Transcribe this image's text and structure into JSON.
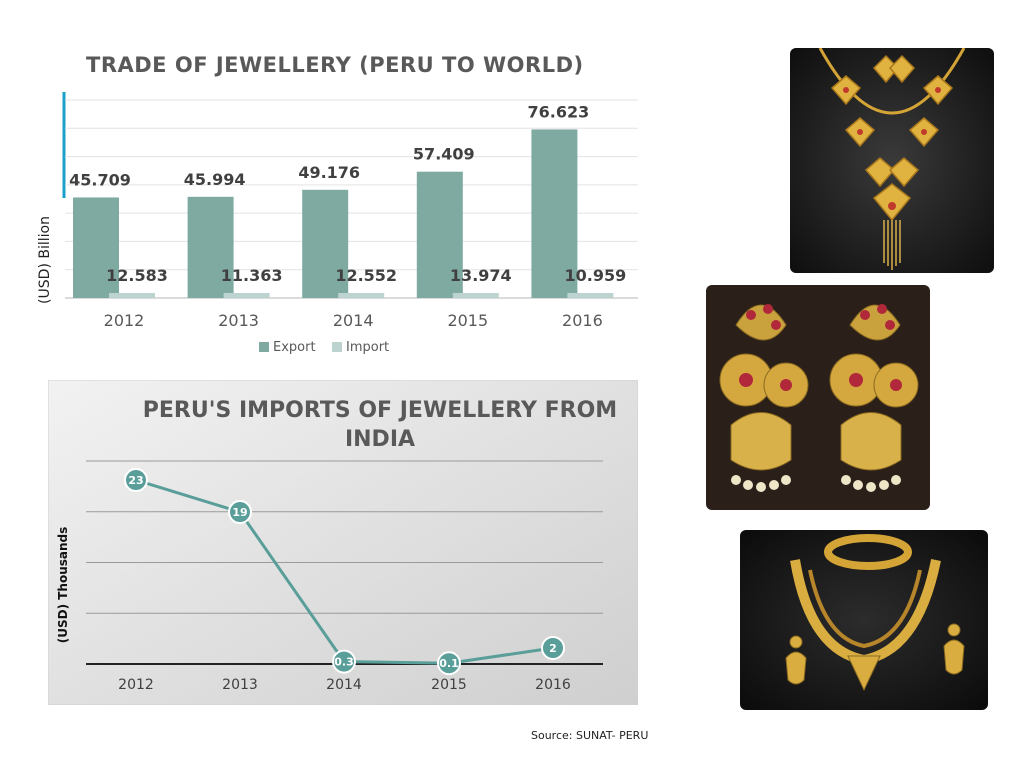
{
  "chart_data": [
    {
      "type": "bar",
      "title": "TRADE OF JEWELLERY (PERU TO WORLD)",
      "ylabel": "(USD) Billion",
      "categories": [
        "2012",
        "2013",
        "2014",
        "2015",
        "2016"
      ],
      "series": [
        {
          "name": "Export",
          "values": [
            45.709,
            45.994,
            49.176,
            57.409,
            76.623
          ],
          "labels": [
            "45.709",
            "45.994",
            "49.176",
            "57.409",
            "76.623"
          ],
          "color": "#7faaa2"
        },
        {
          "name": "Import",
          "values": [
            12.583,
            11.363,
            12.552,
            13.974,
            10.959
          ],
          "labels": [
            "12.583",
            "11.363",
            "12.552",
            "13.974",
            "10.959"
          ],
          "color": "#bcd3cf"
        }
      ],
      "legend": "bottom",
      "grid": true
    },
    {
      "type": "line",
      "title": "PERU'S IMPORTS OF JEWELLERY FROM INDIA",
      "ylabel": "(USD) Thousands",
      "categories": [
        "2012",
        "2013",
        "2014",
        "2015",
        "2016"
      ],
      "series": [
        {
          "values": [
            23,
            19,
            0.3,
            0.1,
            2
          ],
          "labels": [
            "23",
            "19",
            "0.3",
            "0.1",
            "2"
          ],
          "color": "#5a9e9a"
        }
      ],
      "ylim": [
        0,
        25
      ],
      "grid": true
    }
  ],
  "source": "Source: SUNAT- PERU",
  "images": [
    {
      "name": "gold-necklace-photo"
    },
    {
      "name": "jhumka-earrings-photo"
    },
    {
      "name": "gold-jewellery-set-photo"
    }
  ]
}
